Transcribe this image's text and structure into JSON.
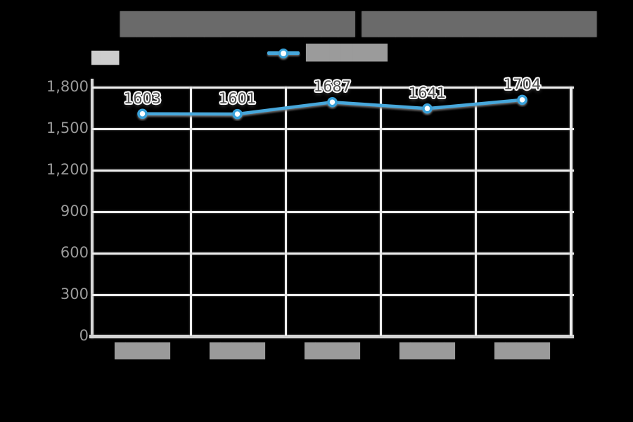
{
  "canvas": {
    "background": "#000000"
  },
  "title": {
    "text": "██████████████ ██████████████",
    "color": "#6a6a6a"
  },
  "unit_label": {
    "text": "███",
    "color": "#cdcdcd"
  },
  "legend": {
    "label": "███████",
    "label_color": "#9b9b9b",
    "marker": "line-circle-marker",
    "position": "top-center"
  },
  "y_axis": {
    "tick_labels": [
      "1,800",
      "1,500",
      "1,200",
      "900",
      "600",
      "300",
      "0"
    ],
    "color": "#9a9a9a"
  },
  "x_axis": {
    "tick_labels": [
      "█████",
      "█████",
      "█████",
      "█████",
      "█████"
    ],
    "color": "#9a9a9a"
  },
  "chart_data": {
    "type": "line",
    "title": "██████████████ ██████████████",
    "series": [
      {
        "name": "███████",
        "values": [
          1603,
          1601,
          1687,
          1641,
          1704
        ],
        "color": "#46a8dc",
        "marker": "circle-white-fill"
      }
    ],
    "categories": [
      "█████",
      "█████",
      "█████",
      "█████",
      "█████"
    ],
    "point_labels": [
      "1603",
      "1601",
      "1687",
      "1641",
      "1704"
    ],
    "ylim": [
      0,
      1800
    ],
    "ytick_step": 300,
    "ytick_labels": [
      "1,800",
      "1,500",
      "1,200",
      "900",
      "600",
      "300",
      "0"
    ],
    "grid": true,
    "legend_position": "top-center",
    "background": "#000000",
    "colors": {
      "line": "#46a8dc",
      "marker_ring": "#38a1d9",
      "marker_fill": "#ffffff",
      "gridline": "#ededed",
      "axis_line": "#d6d6d6",
      "tick_label": "#9a9a9a",
      "data_label": "#4f4f4f",
      "title": "#6a6a6a"
    }
  }
}
